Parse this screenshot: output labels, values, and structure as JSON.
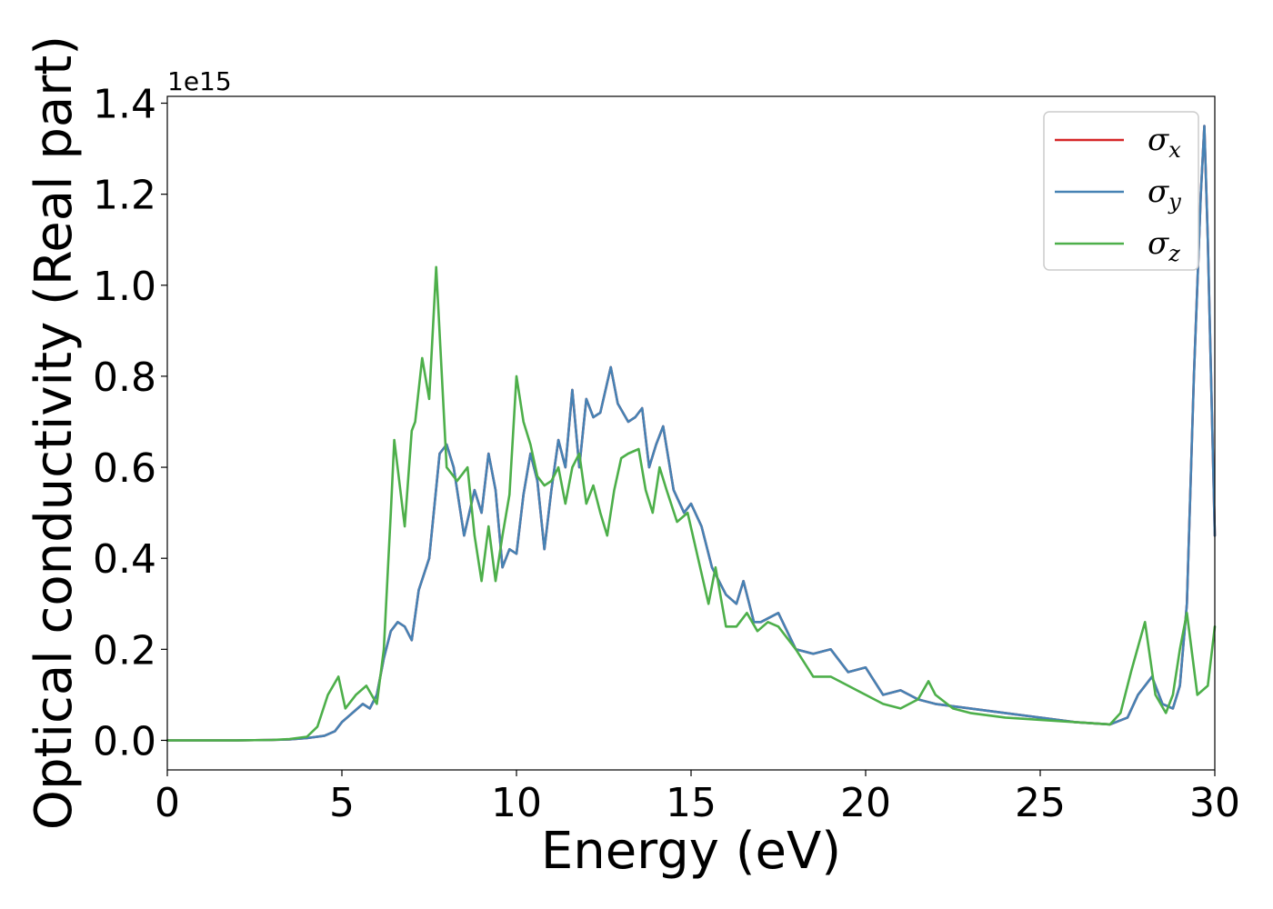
{
  "chart_data": {
    "type": "line",
    "xlabel": "Energy (eV)",
    "ylabel": "Optical conductivity (Real part)",
    "y_offset_text": "1e15",
    "xlim": [
      0,
      30
    ],
    "ylim": [
      -0.065,
      1.415
    ],
    "x_ticks": [
      0,
      5,
      10,
      15,
      20,
      25,
      30
    ],
    "y_ticks": [
      0.0,
      0.2,
      0.4,
      0.6,
      0.8,
      1.0,
      1.2,
      1.4
    ],
    "x_tick_labels": [
      "0",
      "5",
      "10",
      "15",
      "20",
      "25",
      "30"
    ],
    "y_tick_labels": [
      "0.0",
      "0.2",
      "0.4",
      "0.6",
      "0.8",
      "1.0",
      "1.2",
      "1.4"
    ],
    "grid": false,
    "legend_position": "top-right",
    "series": [
      {
        "name": "σx",
        "symbol": "σ",
        "subscript": "x",
        "color": "#d62728",
        "x": [
          0,
          2,
          3,
          3.5,
          4,
          4.5,
          4.8,
          5.0,
          5.3,
          5.6,
          5.8,
          6.0,
          6.2,
          6.4,
          6.6,
          6.8,
          7.0,
          7.2,
          7.5,
          7.8,
          8.0,
          8.2,
          8.5,
          8.8,
          9.0,
          9.2,
          9.4,
          9.6,
          9.8,
          10.0,
          10.2,
          10.4,
          10.6,
          10.8,
          11.0,
          11.2,
          11.4,
          11.6,
          11.8,
          12.0,
          12.2,
          12.4,
          12.7,
          12.9,
          13.2,
          13.4,
          13.6,
          13.8,
          14.0,
          14.2,
          14.5,
          14.8,
          15.0,
          15.3,
          15.6,
          16.0,
          16.3,
          16.5,
          16.8,
          17.0,
          17.5,
          18.0,
          18.5,
          19.0,
          19.5,
          20.0,
          20.5,
          21.0,
          21.5,
          22.0,
          23.0,
          24.0,
          25.0,
          26.0,
          27.0,
          27.5,
          27.8,
          28.0,
          28.2,
          28.5,
          28.8,
          29.0,
          29.2,
          29.4,
          29.6,
          29.7,
          29.8,
          30.0
        ],
        "y": [
          0,
          0,
          0.001,
          0.002,
          0.005,
          0.01,
          0.02,
          0.04,
          0.06,
          0.08,
          0.07,
          0.1,
          0.18,
          0.24,
          0.26,
          0.25,
          0.22,
          0.33,
          0.4,
          0.63,
          0.65,
          0.6,
          0.45,
          0.55,
          0.5,
          0.63,
          0.55,
          0.38,
          0.42,
          0.41,
          0.54,
          0.63,
          0.57,
          0.42,
          0.55,
          0.66,
          0.6,
          0.77,
          0.6,
          0.75,
          0.71,
          0.72,
          0.82,
          0.74,
          0.7,
          0.71,
          0.73,
          0.6,
          0.65,
          0.69,
          0.55,
          0.5,
          0.52,
          0.47,
          0.38,
          0.32,
          0.3,
          0.35,
          0.26,
          0.26,
          0.28,
          0.2,
          0.19,
          0.2,
          0.15,
          0.16,
          0.1,
          0.11,
          0.09,
          0.08,
          0.07,
          0.06,
          0.05,
          0.04,
          0.035,
          0.05,
          0.1,
          0.12,
          0.14,
          0.08,
          0.07,
          0.12,
          0.3,
          0.8,
          1.2,
          1.35,
          1.1,
          0.45
        ]
      },
      {
        "name": "σy",
        "symbol": "σ",
        "subscript": "y",
        "color": "#4682b4",
        "x": [
          0,
          2,
          3,
          3.5,
          4,
          4.5,
          4.8,
          5.0,
          5.3,
          5.6,
          5.8,
          6.0,
          6.2,
          6.4,
          6.6,
          6.8,
          7.0,
          7.2,
          7.5,
          7.8,
          8.0,
          8.2,
          8.5,
          8.8,
          9.0,
          9.2,
          9.4,
          9.6,
          9.8,
          10.0,
          10.2,
          10.4,
          10.6,
          10.8,
          11.0,
          11.2,
          11.4,
          11.6,
          11.8,
          12.0,
          12.2,
          12.4,
          12.7,
          12.9,
          13.2,
          13.4,
          13.6,
          13.8,
          14.0,
          14.2,
          14.5,
          14.8,
          15.0,
          15.3,
          15.6,
          16.0,
          16.3,
          16.5,
          16.8,
          17.0,
          17.5,
          18.0,
          18.5,
          19.0,
          19.5,
          20.0,
          20.5,
          21.0,
          21.5,
          22.0,
          23.0,
          24.0,
          25.0,
          26.0,
          27.0,
          27.5,
          27.8,
          28.0,
          28.2,
          28.5,
          28.8,
          29.0,
          29.2,
          29.4,
          29.6,
          29.7,
          29.8,
          30.0
        ],
        "y": [
          0,
          0,
          0.001,
          0.002,
          0.005,
          0.01,
          0.02,
          0.04,
          0.06,
          0.08,
          0.07,
          0.1,
          0.18,
          0.24,
          0.26,
          0.25,
          0.22,
          0.33,
          0.4,
          0.63,
          0.65,
          0.6,
          0.45,
          0.55,
          0.5,
          0.63,
          0.55,
          0.38,
          0.42,
          0.41,
          0.54,
          0.63,
          0.57,
          0.42,
          0.55,
          0.66,
          0.6,
          0.77,
          0.6,
          0.75,
          0.71,
          0.72,
          0.82,
          0.74,
          0.7,
          0.71,
          0.73,
          0.6,
          0.65,
          0.69,
          0.55,
          0.5,
          0.52,
          0.47,
          0.38,
          0.32,
          0.3,
          0.35,
          0.26,
          0.26,
          0.28,
          0.2,
          0.19,
          0.2,
          0.15,
          0.16,
          0.1,
          0.11,
          0.09,
          0.08,
          0.07,
          0.06,
          0.05,
          0.04,
          0.035,
          0.05,
          0.1,
          0.12,
          0.14,
          0.08,
          0.07,
          0.12,
          0.3,
          0.8,
          1.2,
          1.35,
          1.1,
          0.45
        ]
      },
      {
        "name": "σz",
        "symbol": "σ",
        "subscript": "z",
        "color": "#4daf4a",
        "x": [
          0,
          2,
          3,
          3.5,
          4,
          4.3,
          4.6,
          4.9,
          5.1,
          5.4,
          5.7,
          6.0,
          6.2,
          6.4,
          6.5,
          6.8,
          7.0,
          7.1,
          7.3,
          7.5,
          7.7,
          8.0,
          8.3,
          8.6,
          8.8,
          9.0,
          9.2,
          9.4,
          9.6,
          9.8,
          10.0,
          10.2,
          10.4,
          10.6,
          10.8,
          11.0,
          11.2,
          11.4,
          11.6,
          11.8,
          12.0,
          12.2,
          12.4,
          12.6,
          12.8,
          13.0,
          13.2,
          13.5,
          13.7,
          13.9,
          14.1,
          14.3,
          14.6,
          14.9,
          15.2,
          15.5,
          15.7,
          16.0,
          16.3,
          16.6,
          16.9,
          17.2,
          17.5,
          18.0,
          18.5,
          19.0,
          19.5,
          20.0,
          20.5,
          21.0,
          21.5,
          21.8,
          22.0,
          22.5,
          23.0,
          24.0,
          25.0,
          26.0,
          27.0,
          27.3,
          27.6,
          28.0,
          28.3,
          28.6,
          28.8,
          29.0,
          29.2,
          29.5,
          29.8,
          30.0
        ],
        "y": [
          0,
          0,
          0.001,
          0.003,
          0.008,
          0.03,
          0.1,
          0.14,
          0.07,
          0.1,
          0.12,
          0.08,
          0.2,
          0.5,
          0.66,
          0.47,
          0.68,
          0.7,
          0.84,
          0.75,
          1.04,
          0.6,
          0.57,
          0.6,
          0.45,
          0.35,
          0.47,
          0.35,
          0.45,
          0.54,
          0.8,
          0.7,
          0.65,
          0.58,
          0.56,
          0.57,
          0.6,
          0.52,
          0.6,
          0.63,
          0.52,
          0.56,
          0.5,
          0.45,
          0.55,
          0.62,
          0.63,
          0.64,
          0.55,
          0.5,
          0.6,
          0.55,
          0.48,
          0.5,
          0.4,
          0.3,
          0.38,
          0.25,
          0.25,
          0.28,
          0.24,
          0.26,
          0.25,
          0.2,
          0.14,
          0.14,
          0.12,
          0.1,
          0.08,
          0.07,
          0.09,
          0.13,
          0.1,
          0.07,
          0.06,
          0.05,
          0.045,
          0.04,
          0.035,
          0.06,
          0.15,
          0.26,
          0.1,
          0.06,
          0.1,
          0.2,
          0.28,
          0.1,
          0.12,
          0.25
        ]
      }
    ]
  }
}
